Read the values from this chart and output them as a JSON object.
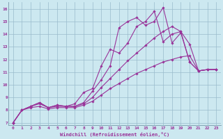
{
  "xlabel": "Windchill (Refroidissement éolien,°C)",
  "bg_color": "#cce8f0",
  "line_color": "#993399",
  "grid_color": "#99bbcc",
  "xlim": [
    -0.5,
    23.5
  ],
  "ylim": [
    6.8,
    16.5
  ],
  "xticks": [
    0,
    1,
    2,
    3,
    4,
    5,
    6,
    7,
    8,
    9,
    10,
    11,
    12,
    13,
    14,
    15,
    16,
    17,
    18,
    19,
    20,
    21,
    22,
    23
  ],
  "yticks": [
    7,
    8,
    9,
    10,
    11,
    12,
    13,
    14,
    15,
    16
  ],
  "lines": [
    {
      "x": [
        0,
        1,
        2,
        3,
        4,
        5,
        6,
        7,
        8,
        9,
        10,
        11,
        12,
        13,
        14,
        15,
        16,
        17,
        18,
        19,
        20,
        21,
        22,
        23
      ],
      "y": [
        7.0,
        8.0,
        8.3,
        8.6,
        8.2,
        8.4,
        8.3,
        8.3,
        8.6,
        9.5,
        10.4,
        11.5,
        14.5,
        15.0,
        15.3,
        14.7,
        15.0,
        16.1,
        13.3,
        14.1,
        11.8,
        11.1,
        11.2,
        11.2
      ]
    },
    {
      "x": [
        0,
        1,
        2,
        3,
        4,
        5,
        6,
        7,
        8,
        9,
        10,
        11,
        12,
        13,
        14,
        15,
        16,
        17,
        18,
        19,
        20,
        21,
        22,
        23
      ],
      "y": [
        7.0,
        8.0,
        8.3,
        8.6,
        8.2,
        8.4,
        8.3,
        8.5,
        9.4,
        9.7,
        11.5,
        12.8,
        12.5,
        13.3,
        14.6,
        15.0,
        15.8,
        13.4,
        14.0,
        14.2,
        11.8,
        11.1,
        11.2,
        11.2
      ]
    },
    {
      "x": [
        0,
        1,
        2,
        3,
        4,
        5,
        6,
        7,
        8,
        9,
        10,
        11,
        12,
        13,
        14,
        15,
        16,
        17,
        18,
        19,
        20,
        21,
        22,
        23
      ],
      "y": [
        7.0,
        8.0,
        8.3,
        8.5,
        8.2,
        8.3,
        8.3,
        8.3,
        8.5,
        9.0,
        9.8,
        10.5,
        11.2,
        11.9,
        12.5,
        13.1,
        13.7,
        14.2,
        14.6,
        14.2,
        13.2,
        11.1,
        11.2,
        11.2
      ]
    },
    {
      "x": [
        0,
        1,
        2,
        3,
        4,
        5,
        6,
        7,
        8,
        9,
        10,
        11,
        12,
        13,
        14,
        15,
        16,
        17,
        18,
        19,
        20,
        21,
        22,
        23
      ],
      "y": [
        7.0,
        8.0,
        8.2,
        8.3,
        8.1,
        8.2,
        8.2,
        8.2,
        8.4,
        8.7,
        9.2,
        9.7,
        10.1,
        10.5,
        10.9,
        11.2,
        11.5,
        11.8,
        12.0,
        12.2,
        12.3,
        11.1,
        11.2,
        11.2
      ]
    }
  ],
  "markersize": 1.8,
  "linewidth": 0.8,
  "tick_fontsize": 4.5,
  "xlabel_fontsize": 5.0
}
